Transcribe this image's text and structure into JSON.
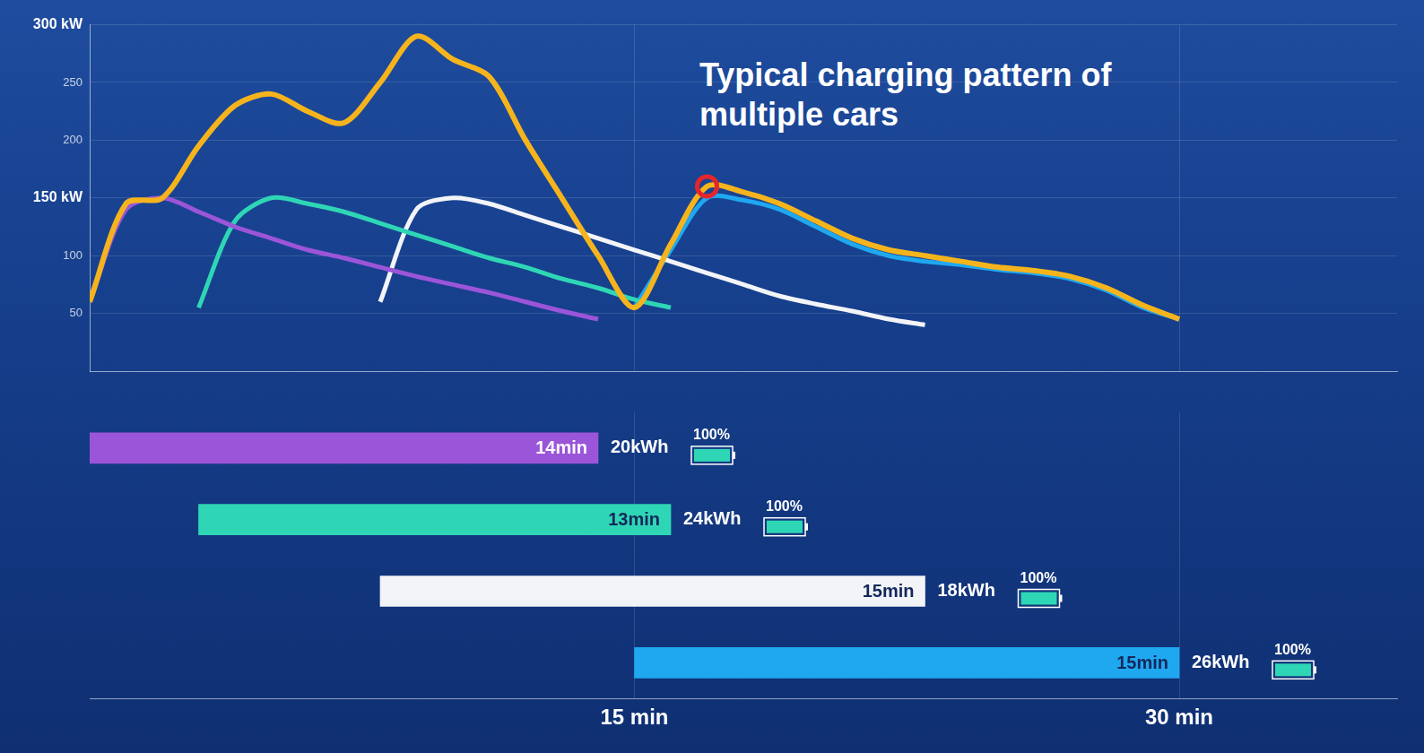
{
  "chart_data": [
    {
      "type": "line",
      "title": "Typical charging pattern of multiple cars",
      "x": [
        0,
        1,
        2,
        3,
        4,
        5,
        6,
        7,
        8,
        9,
        10,
        11,
        12,
        13,
        14,
        15,
        16,
        17,
        18,
        19,
        20,
        21,
        22,
        23,
        24,
        25,
        26,
        27,
        28,
        29,
        30
      ],
      "series": [
        {
          "color": "#f6b41c",
          "values": [
            60,
            145,
            150,
            195,
            230,
            240,
            225,
            215,
            250,
            290,
            270,
            255,
            200,
            150,
            100,
            55,
            110,
            160,
            155,
            145,
            130,
            115,
            105,
            100,
            95,
            90,
            87,
            82,
            72,
            57,
            45
          ]
        },
        {
          "color": "#9b55d8",
          "values": [
            60,
            140,
            150,
            138,
            125,
            115,
            105,
            98,
            90,
            82,
            75,
            68,
            60,
            52,
            45,
            null,
            null,
            null,
            null,
            null,
            null,
            null,
            null,
            null,
            null,
            null,
            null,
            null,
            null,
            null,
            null
          ]
        },
        {
          "color": "#2fd6b5",
          "values": [
            null,
            null,
            null,
            55,
            130,
            150,
            145,
            138,
            128,
            118,
            108,
            98,
            90,
            80,
            72,
            62,
            55,
            null,
            null,
            null,
            null,
            null,
            null,
            null,
            null,
            null,
            null,
            null,
            null,
            null,
            null
          ]
        },
        {
          "color": "#f2f4f8",
          "values": [
            null,
            null,
            null,
            null,
            null,
            null,
            null,
            null,
            60,
            140,
            150,
            145,
            135,
            125,
            115,
            105,
            95,
            85,
            75,
            65,
            58,
            52,
            45,
            40,
            null,
            null,
            null,
            null,
            null,
            null,
            null
          ]
        },
        {
          "color": "#1fa8f0",
          "values": [
            null,
            null,
            null,
            null,
            null,
            null,
            null,
            null,
            null,
            null,
            null,
            null,
            null,
            null,
            null,
            55,
            105,
            150,
            148,
            140,
            125,
            110,
            100,
            95,
            92,
            88,
            85,
            80,
            70,
            55,
            45
          ]
        }
      ],
      "highlight": {
        "x": 17,
        "y": 160,
        "color": "#e3262b"
      },
      "xlim": [
        0,
        36
      ],
      "xticks": [
        15,
        30
      ],
      "ylim": [
        0,
        300
      ],
      "yticks": [
        50,
        100,
        {
          "value": 150,
          "label": "150 kW"
        },
        200,
        250,
        {
          "value": 300,
          "label": "300 kW"
        }
      ],
      "grid": true,
      "tick_labels": "y"
    },
    {
      "type": "bar",
      "orientation": "horizontal",
      "categories": [
        null,
        null,
        null,
        null
      ],
      "starts": [
        0,
        3,
        8,
        15
      ],
      "values": [
        14,
        13,
        15,
        15
      ],
      "value_labels": [
        "14min",
        "13min",
        "15min",
        "15min"
      ],
      "colors": [
        "#9b55d8",
        "#2fd6b5",
        "#f2f4f8",
        "#1fa8f0"
      ],
      "energy": [
        20,
        24,
        18,
        26
      ],
      "energy_labels": [
        "20kWh",
        "24kWh",
        "18kWh",
        "26kWh"
      ],
      "charge": [
        100,
        100,
        100,
        100
      ],
      "charge_labels": [
        "100%",
        "100%",
        "100%",
        "100%"
      ],
      "data_labels": true,
      "xlim": [
        0,
        36
      ],
      "xticks": [
        {
          "value": 15,
          "label": "15 min"
        },
        {
          "value": 30,
          "label": "30 min"
        }
      ],
      "grid": true,
      "tick_labels": "x"
    }
  ]
}
